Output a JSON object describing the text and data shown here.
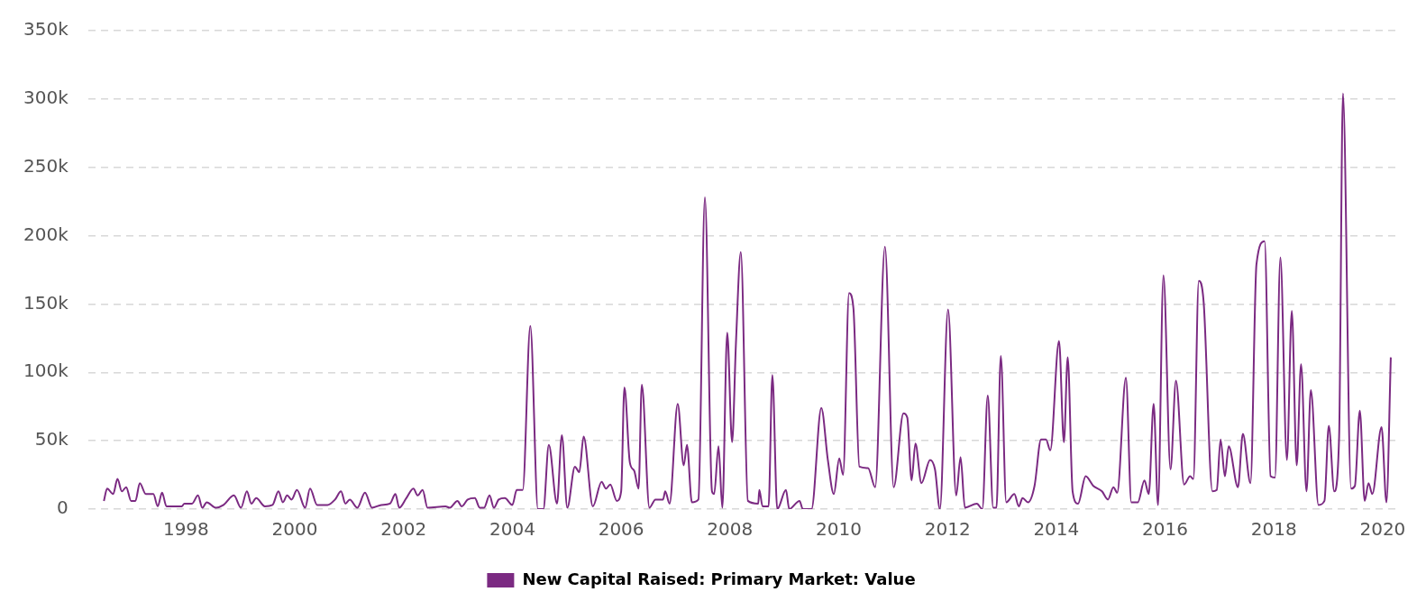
{
  "chart_data": {
    "type": "line",
    "xlim": [
      1996.2,
      2020.3
    ],
    "xticks": [
      1998,
      2000,
      2002,
      2004,
      2006,
      2008,
      2010,
      2012,
      2014,
      2016,
      2018,
      2020
    ],
    "ylim": [
      0,
      350000
    ],
    "yticks": [
      {
        "value": 0,
        "label": "0"
      },
      {
        "value": 50000,
        "label": "50k"
      },
      {
        "value": 100000,
        "label": "100k"
      },
      {
        "value": 150000,
        "label": "150k"
      },
      {
        "value": 200000,
        "label": "200k"
      },
      {
        "value": 250000,
        "label": "250k"
      },
      {
        "value": 300000,
        "label": "300k"
      },
      {
        "value": 350000,
        "label": "350k"
      }
    ],
    "grid": "y",
    "legend": "bottom",
    "marker": "none",
    "line_style": "solid",
    "series": [
      {
        "name": "New Capital Raised: Primary Market: Value",
        "color": "#7b2a82",
        "x": [
          1996.49,
          1996.55,
          1996.66,
          1996.74,
          1996.82,
          1996.9,
          1996.99,
          1997.07,
          1997.15,
          1997.26,
          1997.4,
          1997.48,
          1997.56,
          1997.64,
          1997.92,
          1997.97,
          1998.11,
          1998.22,
          1998.3,
          1998.38,
          1998.55,
          1998.69,
          1998.88,
          1999.01,
          1999.12,
          1999.2,
          1999.29,
          1999.45,
          1999.59,
          1999.7,
          1999.78,
          1999.86,
          1999.94,
          2000.04,
          2000.19,
          2000.28,
          2000.41,
          2000.6,
          2000.74,
          2000.85,
          2000.93,
          2001.01,
          2001.15,
          2001.29,
          2001.42,
          2001.59,
          2001.75,
          2001.85,
          2001.92,
          2002.05,
          2002.18,
          2002.26,
          2002.35,
          2002.44,
          2002.77,
          2002.85,
          2002.99,
          2003.07,
          2003.18,
          2003.31,
          2003.4,
          2003.48,
          2003.58,
          2003.66,
          2003.75,
          2003.86,
          2004.0,
          2004.08,
          2004.19,
          2004.33,
          2004.47,
          2004.57,
          2004.67,
          2004.82,
          2004.91,
          2005.01,
          2005.15,
          2005.23,
          2005.31,
          2005.48,
          2005.64,
          2005.72,
          2005.8,
          2005.92,
          2006.0,
          2006.06,
          2006.16,
          2006.24,
          2006.32,
          2006.38,
          2006.52,
          2006.63,
          2006.77,
          2006.81,
          2006.89,
          2007.04,
          2007.15,
          2007.21,
          2007.3,
          2007.42,
          2007.54,
          2007.67,
          2007.71,
          2007.79,
          2007.86,
          2007.95,
          2008.04,
          2008.11,
          2008.2,
          2008.33,
          2008.52,
          2008.54,
          2008.6,
          2008.71,
          2008.78,
          2008.87,
          2009.03,
          2009.09,
          2009.28,
          2009.34,
          2009.5,
          2009.68,
          2009.8,
          2009.91,
          2010.01,
          2010.08,
          2010.19,
          2010.27,
          2010.38,
          2010.54,
          2010.67,
          2010.85,
          2011.01,
          2011.19,
          2011.26,
          2011.34,
          2011.41,
          2011.52,
          2011.68,
          2011.77,
          2011.86,
          2012.01,
          2012.16,
          2012.24,
          2012.32,
          2012.54,
          2012.64,
          2012.74,
          2012.84,
          2012.9,
          2012.98,
          2013.08,
          2013.23,
          2013.31,
          2013.38,
          2013.48,
          2013.6,
          2013.72,
          2013.81,
          2013.89,
          2014.05,
          2014.14,
          2014.21,
          2014.3,
          2014.4,
          2014.54,
          2014.68,
          2014.84,
          2014.95,
          2015.05,
          2015.12,
          2015.28,
          2015.38,
          2015.5,
          2015.62,
          2015.7,
          2015.79,
          2015.87,
          2015.97,
          2016.1,
          2016.2,
          2016.35,
          2016.46,
          2016.52,
          2016.62,
          2016.71,
          2016.87,
          2016.95,
          2017.02,
          2017.1,
          2017.17,
          2017.34,
          2017.43,
          2017.57,
          2017.68,
          2017.83,
          2017.94,
          2018.02,
          2018.12,
          2018.24,
          2018.33,
          2018.42,
          2018.5,
          2018.6,
          2018.68,
          2018.82,
          2018.93,
          2019.01,
          2019.11,
          2019.2,
          2019.27,
          2019.42,
          2019.49,
          2019.58,
          2019.67,
          2019.74,
          2019.81,
          2019.98,
          2020.07,
          2020.15
        ],
        "values": [
          6000,
          15000,
          11000,
          22000,
          13000,
          16000,
          6000,
          6000,
          19000,
          11000,
          11000,
          2000,
          12000,
          2000,
          2000,
          4000,
          4000,
          10000,
          1000,
          5000,
          1000,
          3000,
          10000,
          1000,
          13000,
          4000,
          8000,
          2000,
          3000,
          13000,
          5000,
          10000,
          7000,
          14000,
          1000,
          15000,
          3000,
          3000,
          7000,
          13000,
          4000,
          7000,
          1000,
          12000,
          1000,
          3000,
          4000,
          11000,
          1000,
          8000,
          15000,
          10000,
          14000,
          1000,
          2000,
          1000,
          6000,
          2000,
          7000,
          8000,
          1000,
          1000,
          10000,
          1000,
          7000,
          8000,
          3000,
          14000,
          14000,
          134000,
          0,
          0,
          47000,
          4000,
          54000,
          1000,
          31000,
          27000,
          53000,
          2000,
          20000,
          15000,
          18000,
          6000,
          13000,
          89000,
          34000,
          28000,
          15000,
          91000,
          1000,
          7000,
          7000,
          13000,
          4000,
          77000,
          32000,
          47000,
          5000,
          7000,
          228000,
          13000,
          11000,
          46000,
          1000,
          129000,
          49000,
          121000,
          188000,
          6000,
          4000,
          14000,
          2000,
          2000,
          98000,
          0,
          14000,
          0,
          6000,
          0,
          0,
          74000,
          36000,
          11000,
          37000,
          25000,
          158000,
          147000,
          31000,
          30000,
          16000,
          192000,
          16000,
          70000,
          67000,
          21000,
          48000,
          19000,
          36000,
          29000,
          0,
          146000,
          10000,
          38000,
          1000,
          4000,
          0,
          83000,
          1000,
          1000,
          112000,
          5000,
          11000,
          2000,
          8000,
          5000,
          17000,
          51000,
          51000,
          43000,
          123000,
          49000,
          111000,
          13000,
          4000,
          24000,
          17000,
          13000,
          7000,
          16000,
          12000,
          96000,
          5000,
          5000,
          21000,
          11000,
          77000,
          3000,
          171000,
          29000,
          94000,
          18000,
          24000,
          22000,
          167000,
          151000,
          13000,
          14000,
          51000,
          24000,
          46000,
          16000,
          55000,
          19000,
          179000,
          196000,
          24000,
          23000,
          184000,
          36000,
          145000,
          32000,
          106000,
          13000,
          87000,
          3000,
          6000,
          61000,
          13000,
          53000,
          304000,
          15000,
          17000,
          72000,
          6000,
          19000,
          11000,
          60000,
          5000,
          111000
        ]
      }
    ]
  }
}
